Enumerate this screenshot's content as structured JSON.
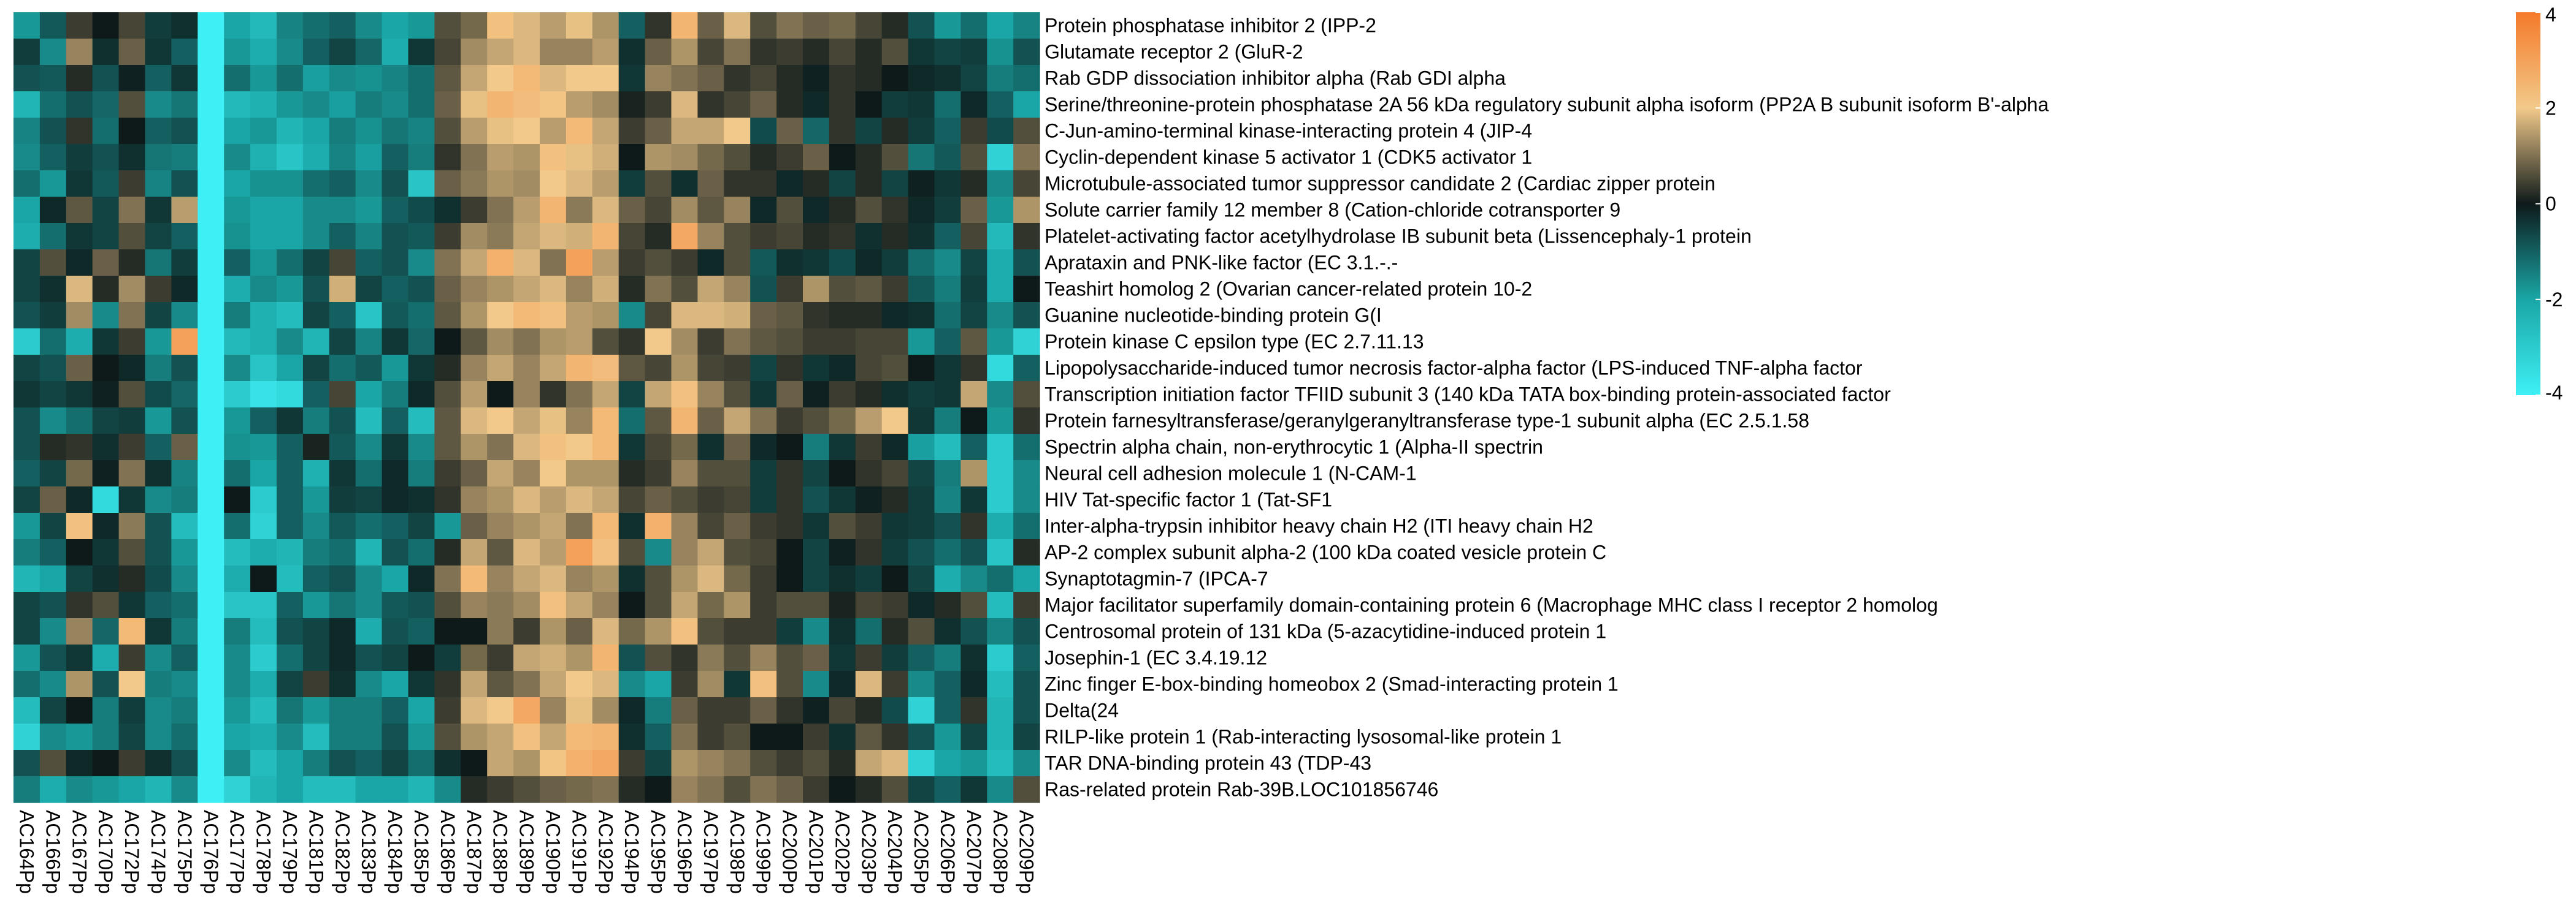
{
  "chart_data": {
    "type": "heatmap",
    "title": "",
    "xlabel": "",
    "ylabel": "",
    "colorscale": {
      "min": -4,
      "max": 4,
      "stops": [
        {
          "value": -4,
          "color": "#3ef0f5"
        },
        {
          "value": -2,
          "color": "#1aa6a6"
        },
        {
          "value": 0,
          "color": "#0e1a1a"
        },
        {
          "value": 2,
          "color": "#f2c98a"
        },
        {
          "value": 4,
          "color": "#f57a2a"
        }
      ],
      "ticks": [
        "4",
        "2",
        "0",
        "-2",
        "-4"
      ]
    },
    "columns": [
      "AC164Pp",
      "AC166Pp",
      "AC167Pp",
      "AC170Pp",
      "AC172Pp",
      "AC174Pp",
      "AC175Pp",
      "AC176Pp",
      "AC177Pp",
      "AC178Pp",
      "AC179Pp",
      "AC181Pp",
      "AC182Pp",
      "AC183Pp",
      "AC184Pp",
      "AC185Pp",
      "AC186Pp",
      "AC187Pp",
      "AC188Pp",
      "AC189Pp",
      "AC190Pp",
      "AC191Pp",
      "AC192Pp",
      "AC194Pp",
      "AC195Pp",
      "AC196Pp",
      "AC197Pp",
      "AC198Pp",
      "AC199Pp",
      "AC200Pp",
      "AC201Pp",
      "AC202Pp",
      "AC203Pp",
      "AC204Pp",
      "AC205Pp",
      "AC206Pp",
      "AC207Pp",
      "AC208Pp",
      "AC209Pp"
    ],
    "rows": [
      "Protein phosphatase inhibitor 2 (IPP-2",
      "Glutamate receptor 2 (GluR-2",
      "Rab GDP dissociation inhibitor alpha (Rab GDI alpha",
      "Serine/threonine-protein phosphatase 2A 56 kDa regulatory subunit alpha isoform (PP2A B subunit isoform B'-alpha",
      "C-Jun-amino-terminal kinase-interacting protein 4 (JIP-4",
      "Cyclin-dependent kinase 5 activator 1 (CDK5 activator 1",
      "Microtubule-associated tumor suppressor candidate 2 (Cardiac zipper protein",
      "Solute carrier family 12 member 8 (Cation-chloride cotransporter 9",
      "Platelet-activating factor acetylhydrolase IB subunit beta (Lissencephaly-1 protein",
      "Aprataxin and PNK-like factor (EC 3.1.-.-",
      "Teashirt homolog 2 (Ovarian cancer-related protein 10-2",
      "Guanine nucleotide-binding protein G(I",
      "Protein kinase C epsilon type (EC 2.7.11.13",
      "Lipopolysaccharide-induced tumor necrosis factor-alpha factor (LPS-induced TNF-alpha factor",
      "Transcription initiation factor TFIID subunit 3 (140 kDa TATA box-binding protein-associated factor",
      "Protein farnesyltransferase/geranylgeranyltransferase type-1 subunit alpha (EC 2.5.1.58",
      "Spectrin alpha chain, non-erythrocytic 1 (Alpha-II spectrin",
      "Neural cell adhesion molecule 1 (N-CAM-1",
      "HIV Tat-specific factor 1 (Tat-SF1",
      "Inter-alpha-trypsin inhibitor heavy chain H2 (ITI heavy chain H2",
      "AP-2 complex subunit alpha-2 (100 kDa coated vesicle protein C",
      "Synaptotagmin-7 (IPCA-7",
      "Major facilitator superfamily domain-containing protein 6 (Macrophage MHC class I receptor 2 homolog",
      "Centrosomal protein of 131 kDa (5-azacytidine-induced protein 1",
      "Josephin-1 (EC 3.4.19.12",
      "Zinc finger E-box-binding homeobox 2 (Smad-interacting protein 1",
      "Delta(24",
      "RILP-like protein 1 (Rab-interacting lysosomal-like protein 1",
      "TAR DNA-binding protein 43 (TDP-43",
      "Ras-related protein Rab-39B.LOC101856746"
    ],
    "values": [
      [
        -1.8,
        -0.9,
        0.4,
        0.0,
        0.5,
        -0.5,
        -0.3,
        -4.0,
        -2.0,
        -2.5,
        -1.5,
        -1.2,
        -1.0,
        -1.6,
        -2.0,
        -1.8,
        0.6,
        0.9,
        2.2,
        1.8,
        1.5,
        1.9,
        1.4,
        -1.0,
        0.3,
        2.5,
        0.8,
        1.8,
        0.6,
        1.0,
        0.8,
        0.9,
        0.5,
        0.2,
        -0.8,
        -1.8,
        -1.2,
        -2.0,
        -1.5
      ],
      [
        -0.5,
        -1.6,
        1.2,
        -0.3,
        0.8,
        -0.4,
        -1.0,
        -4.0,
        -1.8,
        -2.2,
        -1.6,
        -1.0,
        -0.6,
        -1.1,
        -2.2,
        -0.4,
        0.5,
        1.3,
        1.6,
        1.8,
        1.2,
        1.2,
        1.5,
        -0.3,
        0.8,
        1.4,
        0.5,
        1.0,
        0.3,
        0.4,
        0.2,
        0.5,
        0.2,
        0.6,
        -0.4,
        -0.6,
        -0.5,
        -1.7,
        -0.8
      ],
      [
        -0.8,
        -0.9,
        0.2,
        -0.8,
        -0.1,
        -1.0,
        -0.4,
        -4.0,
        -1.2,
        -1.8,
        -1.2,
        -1.9,
        -1.6,
        -1.7,
        -1.5,
        -1.2,
        0.7,
        1.6,
        2.0,
        2.4,
        1.8,
        2.0,
        2.0,
        -0.4,
        1.2,
        1.0,
        0.8,
        0.3,
        0.5,
        0.2,
        -0.1,
        0.3,
        0.2,
        0.0,
        -0.2,
        -0.3,
        -0.6,
        -1.4,
        -1.2
      ],
      [
        -2.4,
        -1.2,
        -0.8,
        -1.1,
        0.6,
        -1.6,
        -1.3,
        -4.0,
        -2.5,
        -2.3,
        -1.8,
        -1.6,
        -1.9,
        -1.4,
        -1.6,
        -1.2,
        0.8,
        1.9,
        2.5,
        2.3,
        2.1,
        1.5,
        1.3,
        0.1,
        0.4,
        1.8,
        0.3,
        0.5,
        0.8,
        0.2,
        -0.2,
        0.3,
        0.0,
        -0.5,
        -0.4,
        -1.2,
        -0.2,
        -1.0,
        -2.0
      ],
      [
        -1.5,
        -0.8,
        0.3,
        -1.2,
        0.0,
        -1.0,
        -0.8,
        -4.0,
        -2.0,
        -1.8,
        -2.4,
        -2.0,
        -1.4,
        -1.7,
        -1.3,
        -1.5,
        0.6,
        1.5,
        1.9,
        2.0,
        1.5,
        2.4,
        1.6,
        0.4,
        0.8,
        1.6,
        1.6,
        2.0,
        -0.7,
        0.8,
        -1.1,
        0.3,
        -0.6,
        0.2,
        -0.5,
        -1.0,
        0.4,
        -0.7,
        0.6
      ],
      [
        -1.6,
        -1.0,
        -0.5,
        -0.8,
        -0.3,
        -1.3,
        -1.4,
        -4.0,
        -1.6,
        -2.3,
        -2.8,
        -2.2,
        -1.5,
        -1.9,
        -1.0,
        -1.4,
        0.3,
        1.0,
        1.5,
        1.4,
        2.2,
        1.9,
        1.7,
        0.0,
        1.4,
        1.3,
        0.9,
        0.6,
        0.2,
        0.4,
        0.8,
        0.0,
        0.2,
        0.6,
        -1.3,
        -0.9,
        0.6,
        -3.2,
        1.0
      ],
      [
        -1.2,
        -1.8,
        -0.4,
        -0.9,
        0.4,
        -1.5,
        -0.8,
        -4.0,
        -2.0,
        -1.7,
        -1.7,
        -1.2,
        -1.0,
        -1.6,
        -0.8,
        -2.8,
        0.8,
        1.1,
        1.4,
        1.3,
        2.0,
        1.8,
        1.5,
        -0.5,
        0.6,
        -0.3,
        0.8,
        0.3,
        0.3,
        -0.2,
        0.2,
        -0.6,
        0.2,
        -0.6,
        -0.1,
        -0.4,
        0.2,
        -1.6,
        0.5
      ],
      [
        -2.0,
        -0.2,
        0.7,
        -0.6,
        1.0,
        -0.4,
        1.5,
        -4.0,
        -1.8,
        -2.0,
        -2.0,
        -1.6,
        -1.6,
        -1.8,
        -1.0,
        -0.7,
        -0.3,
        0.4,
        1.0,
        1.5,
        2.5,
        1.1,
        1.8,
        0.8,
        0.5,
        1.3,
        0.7,
        1.2,
        -0.2,
        0.6,
        -0.2,
        0.2,
        0.6,
        0.3,
        -0.2,
        -0.5,
        0.8,
        -1.8,
        1.4
      ],
      [
        -2.2,
        -1.2,
        -0.4,
        -0.6,
        0.6,
        -0.6,
        -1.0,
        -4.0,
        -1.7,
        -2.0,
        -2.0,
        -1.6,
        -1.0,
        -1.5,
        -0.8,
        -0.9,
        0.4,
        1.3,
        1.1,
        1.6,
        1.8,
        1.7,
        2.5,
        0.5,
        0.2,
        2.8,
        1.2,
        0.6,
        0.4,
        0.5,
        0.2,
        0.3,
        -0.3,
        0.2,
        -0.3,
        -1.0,
        0.5,
        -2.5,
        0.3
      ],
      [
        -0.6,
        0.6,
        -0.2,
        0.8,
        0.2,
        -1.3,
        -0.5,
        -4.0,
        -1.0,
        -1.8,
        -1.2,
        -0.6,
        0.5,
        -1.0,
        -0.8,
        -1.6,
        1.0,
        1.6,
        2.6,
        1.8,
        1.0,
        3.0,
        1.5,
        0.4,
        0.6,
        0.4,
        -0.2,
        0.6,
        -0.9,
        -0.3,
        -0.4,
        -0.7,
        -0.2,
        -0.5,
        -1.2,
        -1.6,
        -0.6,
        -2.2,
        -0.8
      ],
      [
        -0.6,
        -0.3,
        1.8,
        0.2,
        1.3,
        0.4,
        -0.2,
        -4.0,
        -2.2,
        -1.6,
        -1.8,
        -0.8,
        1.7,
        -0.6,
        -1.0,
        -0.8,
        0.8,
        1.2,
        1.4,
        1.6,
        1.8,
        1.2,
        1.7,
        0.2,
        1.0,
        0.6,
        1.6,
        1.2,
        -0.8,
        0.4,
        1.4,
        0.6,
        0.7,
        0.4,
        -0.9,
        -1.4,
        -0.5,
        -2.2,
        0.0
      ],
      [
        -0.8,
        -0.5,
        1.3,
        -1.6,
        1.0,
        -0.6,
        -1.6,
        -4.0,
        -1.4,
        -2.3,
        -2.6,
        -0.6,
        -1.0,
        -2.8,
        -0.9,
        -1.2,
        0.7,
        1.4,
        2.0,
        2.4,
        2.2,
        1.5,
        1.4,
        -1.6,
        0.5,
        1.8,
        1.8,
        1.7,
        0.8,
        0.7,
        0.3,
        0.2,
        0.2,
        -0.2,
        -0.3,
        -1.2,
        -0.6,
        -1.6,
        -0.8
      ],
      [
        -3.0,
        -1.2,
        -2.2,
        -0.4,
        0.4,
        -1.8,
        3.0,
        -4.0,
        -2.5,
        -2.3,
        -1.6,
        -2.4,
        -0.6,
        -1.5,
        -0.4,
        -1.1,
        0.0,
        0.7,
        1.3,
        1.0,
        1.4,
        1.5,
        0.6,
        0.3,
        2.0,
        1.3,
        0.4,
        1.0,
        0.7,
        0.6,
        0.4,
        0.4,
        0.5,
        0.5,
        -1.8,
        -1.0,
        0.7,
        -1.8,
        -3.2
      ],
      [
        -0.6,
        -0.8,
        0.8,
        0.0,
        -0.2,
        -1.4,
        -0.8,
        -4.0,
        -1.6,
        -2.8,
        -2.0,
        -0.6,
        -1.2,
        -0.9,
        -1.8,
        -0.4,
        0.2,
        1.2,
        1.6,
        1.2,
        1.6,
        2.5,
        2.3,
        0.7,
        0.5,
        1.4,
        0.5,
        0.4,
        -0.6,
        0.3,
        -0.4,
        -0.2,
        0.5,
        0.6,
        0.0,
        -0.4,
        0.3,
        -3.4,
        -1.0
      ],
      [
        -0.4,
        -0.6,
        -0.4,
        -0.1,
        0.6,
        -0.7,
        -1.1,
        -4.0,
        -3.0,
        -3.6,
        -3.4,
        -1.0,
        0.5,
        -2.0,
        -1.4,
        -0.2,
        0.6,
        1.5,
        0.0,
        1.2,
        0.3,
        1.0,
        1.6,
        -0.6,
        1.6,
        2.2,
        1.2,
        0.6,
        -0.4,
        0.8,
        -0.1,
        0.4,
        0.2,
        -0.3,
        -0.5,
        -0.4,
        1.6,
        -1.6,
        0.6
      ],
      [
        -0.8,
        -1.6,
        -1.2,
        -0.6,
        -0.5,
        -1.8,
        -0.8,
        -4.0,
        -1.8,
        -1.0,
        -0.4,
        -1.4,
        -0.8,
        -2.6,
        -1.0,
        -2.6,
        0.7,
        1.8,
        2.0,
        1.6,
        1.9,
        1.2,
        2.4,
        -1.2,
        0.7,
        2.5,
        0.8,
        1.6,
        1.0,
        0.4,
        0.6,
        0.9,
        1.5,
        2.0,
        -0.4,
        -1.4,
        0.0,
        -1.8,
        0.3
      ],
      [
        -0.8,
        0.2,
        0.3,
        -0.3,
        0.4,
        -1.0,
        0.8,
        -4.0,
        -1.7,
        -1.8,
        -1.0,
        0.1,
        -0.9,
        -1.6,
        -0.4,
        -1.6,
        0.7,
        1.4,
        1.0,
        1.8,
        2.2,
        2.0,
        2.4,
        -0.4,
        0.5,
        0.9,
        -0.3,
        0.8,
        -0.2,
        0.0,
        -1.4,
        -0.4,
        0.4,
        -0.2,
        -1.9,
        -2.6,
        -1.0,
        -3.0,
        -1.2
      ],
      [
        -1.0,
        -0.6,
        0.9,
        -0.1,
        1.0,
        -0.3,
        -1.5,
        -4.0,
        -1.2,
        -2.0,
        -1.0,
        -2.3,
        -0.4,
        -1.2,
        -0.2,
        -1.4,
        0.4,
        0.8,
        1.6,
        1.2,
        2.0,
        1.4,
        1.4,
        0.2,
        0.4,
        1.2,
        0.6,
        0.6,
        -0.5,
        0.3,
        -0.6,
        0.0,
        0.3,
        0.5,
        -0.6,
        -1.4,
        1.4,
        -3.0,
        -1.6
      ],
      [
        -0.6,
        0.8,
        -0.2,
        -3.4,
        -0.4,
        -1.6,
        -1.4,
        -4.0,
        0.0,
        -3.0,
        -1.0,
        -1.8,
        -0.5,
        -0.6,
        -0.2,
        -0.3,
        0.3,
        1.2,
        1.4,
        1.8,
        1.5,
        1.8,
        1.6,
        0.5,
        0.8,
        0.6,
        0.4,
        0.5,
        -0.5,
        0.3,
        -0.8,
        -0.4,
        -0.1,
        0.2,
        -0.5,
        -1.5,
        -0.4,
        -3.0,
        -1.6
      ],
      [
        -1.8,
        -0.6,
        2.2,
        -0.2,
        1.1,
        -0.8,
        -2.6,
        -4.0,
        -1.2,
        -3.2,
        -1.0,
        -1.6,
        -0.9,
        -1.2,
        -1.0,
        -0.6,
        -1.8,
        0.8,
        1.2,
        1.4,
        1.6,
        1.0,
        2.4,
        -0.3,
        2.6,
        1.2,
        0.5,
        0.8,
        0.4,
        0.3,
        -0.4,
        0.6,
        0.4,
        -0.4,
        -0.5,
        -0.8,
        0.3,
        -2.2,
        -1.2
      ],
      [
        -1.4,
        -1.0,
        0.0,
        -0.4,
        0.6,
        -0.8,
        -1.8,
        -4.0,
        -2.6,
        -2.2,
        -2.4,
        -1.4,
        -1.2,
        -2.4,
        -0.8,
        -1.2,
        0.2,
        1.6,
        0.7,
        1.8,
        1.5,
        3.0,
        2.2,
        0.6,
        -1.6,
        1.2,
        1.6,
        0.6,
        0.5,
        0.0,
        -0.6,
        -0.1,
        0.3,
        -0.5,
        -0.8,
        -1.2,
        -0.8,
        -2.8,
        0.2
      ],
      [
        -2.4,
        -2.0,
        -0.6,
        -0.3,
        0.2,
        -0.7,
        -1.6,
        -4.0,
        -2.2,
        0.0,
        -2.6,
        -1.0,
        -0.8,
        -1.6,
        -2.0,
        -0.2,
        1.0,
        2.4,
        1.2,
        1.6,
        1.8,
        1.2,
        1.4,
        -0.3,
        0.6,
        1.4,
        1.8,
        0.9,
        0.4,
        0.0,
        -0.6,
        -0.3,
        -0.5,
        0.0,
        -0.6,
        -2.2,
        -1.6,
        -1.2,
        -2.0
      ],
      [
        -0.6,
        -0.8,
        0.3,
        0.6,
        -0.4,
        -1.0,
        -1.2,
        -4.0,
        -2.8,
        -2.8,
        -1.0,
        -1.8,
        -1.3,
        -1.6,
        -0.9,
        -0.8,
        0.6,
        1.2,
        1.1,
        1.3,
        2.2,
        1.6,
        1.2,
        0.0,
        0.6,
        1.6,
        0.9,
        1.4,
        0.4,
        0.6,
        0.6,
        0.1,
        0.5,
        0.4,
        -0.2,
        0.2,
        0.6,
        -2.6,
        0.4
      ],
      [
        -0.6,
        -1.6,
        1.2,
        -1.1,
        2.4,
        -0.4,
        -1.4,
        -4.0,
        -1.4,
        -2.6,
        -0.8,
        -0.6,
        -0.2,
        -2.2,
        -0.8,
        -1.0,
        0.0,
        0.0,
        1.1,
        0.4,
        1.4,
        0.8,
        1.8,
        0.9,
        1.4,
        2.2,
        0.6,
        0.4,
        0.4,
        -0.5,
        -1.6,
        -0.3,
        -1.2,
        0.2,
        0.6,
        -0.3,
        -0.8,
        -1.5,
        -0.8
      ],
      [
        -1.8,
        -0.8,
        -0.4,
        -2.2,
        0.4,
        -1.6,
        -1.0,
        -4.0,
        -1.6,
        -3.0,
        -1.2,
        -0.6,
        -0.2,
        -0.8,
        -0.6,
        0.0,
        -0.5,
        0.9,
        0.4,
        1.6,
        1.7,
        1.4,
        2.5,
        -0.8,
        0.6,
        0.3,
        1.1,
        0.6,
        1.2,
        0.6,
        0.8,
        -0.4,
        0.4,
        -0.5,
        -1.0,
        -1.4,
        -0.3,
        -3.0,
        -1.0
      ],
      [
        -1.2,
        -1.6,
        1.4,
        -0.8,
        2.0,
        -1.4,
        -1.6,
        -4.0,
        -1.6,
        -2.2,
        -0.6,
        0.4,
        -0.3,
        -1.6,
        -2.0,
        -0.4,
        0.3,
        1.6,
        0.7,
        1.0,
        1.6,
        2.0,
        1.8,
        -1.6,
        -2.0,
        0.4,
        1.3,
        -0.4,
        2.2,
        0.6,
        -1.6,
        -0.2,
        1.8,
        0.4,
        -1.6,
        -1.0,
        -0.2,
        -2.6,
        -0.8
      ],
      [
        -2.6,
        -0.6,
        0.0,
        -1.4,
        -0.5,
        -1.6,
        -1.4,
        -4.0,
        -1.8,
        -2.6,
        -1.3,
        -1.8,
        -1.4,
        -1.4,
        -1.0,
        -2.0,
        0.4,
        1.8,
        2.0,
        2.8,
        1.2,
        1.9,
        1.3,
        -0.2,
        -1.4,
        0.8,
        0.4,
        0.4,
        0.8,
        0.3,
        -0.1,
        0.5,
        0.2,
        -0.7,
        -3.2,
        -1.0,
        0.3,
        -2.4,
        -0.8
      ],
      [
        -3.2,
        -1.6,
        -1.8,
        -1.4,
        -0.6,
        -1.6,
        -1.2,
        -4.0,
        -2.0,
        -2.2,
        -1.6,
        -2.6,
        -1.4,
        -1.4,
        -0.8,
        -1.8,
        0.6,
        1.4,
        1.6,
        2.2,
        1.6,
        2.4,
        2.5,
        -0.3,
        -1.0,
        1.0,
        0.4,
        0.6,
        0.0,
        0.0,
        0.4,
        -0.3,
        0.7,
        0.3,
        -0.8,
        -1.8,
        -0.6,
        -2.4,
        -0.6
      ],
      [
        -0.8,
        0.6,
        -0.2,
        0.0,
        0.4,
        -0.3,
        -0.8,
        -4.0,
        -1.6,
        -2.6,
        -2.0,
        -1.4,
        -0.8,
        -1.0,
        -0.6,
        -1.2,
        -0.3,
        0.0,
        1.6,
        1.4,
        2.1,
        2.6,
        2.8,
        0.4,
        -0.6,
        1.4,
        1.2,
        1.0,
        0.6,
        0.4,
        0.6,
        0.2,
        1.6,
        1.8,
        -3.2,
        -2.0,
        -1.8,
        -2.6,
        -1.6
      ],
      [
        -1.4,
        -2.2,
        -1.6,
        -1.8,
        -2.0,
        -2.4,
        -1.6,
        -4.0,
        -3.2,
        -2.4,
        -2.0,
        -2.6,
        -2.6,
        -2.0,
        -2.0,
        -2.4,
        -1.6,
        0.2,
        0.4,
        0.6,
        0.8,
        0.9,
        1.0,
        0.2,
        0.0,
        1.2,
        1.0,
        0.6,
        1.0,
        0.8,
        0.4,
        0.0,
        0.2,
        0.6,
        -0.6,
        -1.0,
        -0.4,
        -1.6,
        0.6
      ]
    ]
  }
}
